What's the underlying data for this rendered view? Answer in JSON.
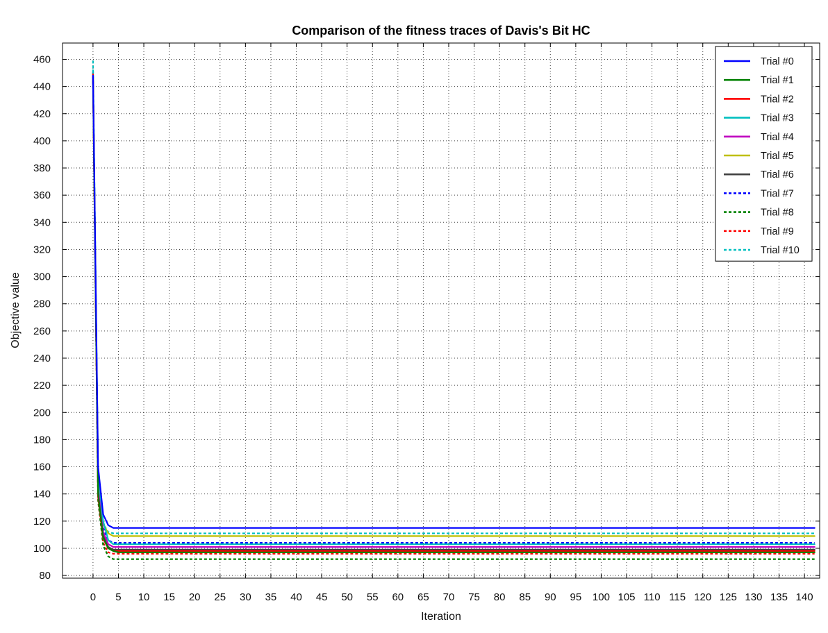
{
  "chart_data": {
    "type": "line",
    "title": "Comparison of the fitness traces of Davis's Bit HC",
    "xlabel": "Iteration",
    "ylabel": "Objective value",
    "xlim": [
      -6,
      143
    ],
    "ylim": [
      78,
      472
    ],
    "grid": true,
    "legend_position": "top-right",
    "x_ticks": [
      0,
      5,
      10,
      15,
      20,
      25,
      30,
      35,
      40,
      45,
      50,
      55,
      60,
      65,
      70,
      75,
      80,
      85,
      90,
      95,
      100,
      105,
      110,
      115,
      120,
      125,
      130,
      135,
      140
    ],
    "y_ticks": [
      80,
      100,
      120,
      140,
      160,
      180,
      200,
      220,
      240,
      260,
      280,
      300,
      320,
      340,
      360,
      380,
      400,
      420,
      440,
      460
    ],
    "series": [
      {
        "name": "Trial #0",
        "color": "#0000ff",
        "style": "solid",
        "x": [
          0,
          1,
          2,
          3,
          4,
          5,
          142
        ],
        "y": [
          448,
          160,
          125,
          117,
          115,
          115,
          115
        ]
      },
      {
        "name": "Trial #1",
        "color": "#008000",
        "style": "solid",
        "x": [
          0,
          1,
          2,
          3,
          4,
          5,
          142
        ],
        "y": [
          445,
          140,
          108,
          100,
          98,
          97,
          97
        ]
      },
      {
        "name": "Trial #2",
        "color": "#ff0000",
        "style": "solid",
        "x": [
          0,
          1,
          2,
          3,
          4,
          5,
          142
        ],
        "y": [
          449,
          138,
          107,
          100,
          98,
          98,
          98
        ]
      },
      {
        "name": "Trial #3",
        "color": "#00bfbf",
        "style": "solid",
        "x": [
          0,
          1,
          2,
          3,
          4,
          5,
          142
        ],
        "y": [
          452,
          155,
          120,
          106,
          103,
          103,
          103
        ]
      },
      {
        "name": "Trial #4",
        "color": "#bf00bf",
        "style": "solid",
        "x": [
          0,
          1,
          2,
          3,
          4,
          5,
          142
        ],
        "y": [
          447,
          145,
          112,
          103,
          101,
          101,
          101
        ]
      },
      {
        "name": "Trial #5",
        "color": "#bfbf00",
        "style": "solid",
        "x": [
          0,
          1,
          2,
          3,
          4,
          5,
          142
        ],
        "y": [
          446,
          150,
          118,
          111,
          109,
          109,
          109
        ]
      },
      {
        "name": "Trial #6",
        "color": "#404040",
        "style": "solid",
        "x": [
          0,
          1,
          2,
          3,
          4,
          5,
          142
        ],
        "y": [
          450,
          142,
          110,
          101,
          99,
          99,
          99
        ]
      },
      {
        "name": "Trial #7",
        "color": "#0000ff",
        "style": "dotted",
        "x": [
          0,
          1,
          2,
          3,
          4,
          5,
          142
        ],
        "y": [
          451,
          152,
          115,
          106,
          104,
          104,
          104
        ]
      },
      {
        "name": "Trial #8",
        "color": "#008000",
        "style": "dotted",
        "x": [
          0,
          1,
          2,
          3,
          4,
          5,
          142
        ],
        "y": [
          444,
          135,
          102,
          94,
          92,
          92,
          92
        ]
      },
      {
        "name": "Trial #9",
        "color": "#ff0000",
        "style": "dotted",
        "x": [
          0,
          1,
          2,
          3,
          4,
          5,
          142
        ],
        "y": [
          447,
          137,
          104,
          97,
          96,
          96,
          96
        ]
      },
      {
        "name": "Trial #10",
        "color": "#00bfbf",
        "style": "dotted",
        "x": [
          0,
          1,
          2,
          3,
          4,
          5,
          142
        ],
        "y": [
          459,
          150,
          118,
          112,
          111,
          111,
          111
        ]
      }
    ]
  }
}
